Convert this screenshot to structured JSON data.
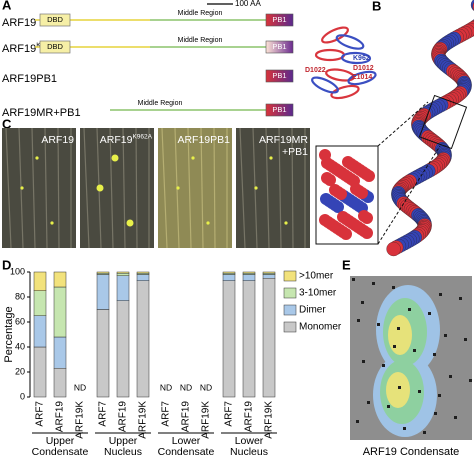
{
  "panel_labels": [
    "A",
    "B",
    "C",
    "D",
    "E"
  ],
  "panel_a": {
    "scale_bar": "100 AA",
    "rows": [
      {
        "name": "ARF19",
        "domains": [
          "DBD",
          "Middle Region",
          "PB1"
        ]
      },
      {
        "name": "ARF19",
        "superscript": "K962A",
        "domains": [
          "DBD",
          "Middle Region",
          "PB1"
        ]
      },
      {
        "name": "ARF19PB1",
        "domains": [
          "PB1"
        ]
      },
      {
        "name": "ARF19MR+PB1",
        "domains": [
          "Middle Region",
          "PB1"
        ]
      }
    ]
  },
  "panel_b": {
    "residues": [
      "K962",
      "D1012",
      "E1014",
      "D1022"
    ]
  },
  "panel_c": {
    "images": [
      {
        "name": "ARF19"
      },
      {
        "name": "ARF19",
        "superscript": "K962A"
      },
      {
        "name": "ARF19PB1"
      },
      {
        "name": "ARF19MR",
        "line2": "+PB1"
      }
    ]
  },
  "chart_data": {
    "type": "bar",
    "stacked": true,
    "ylabel": "Percentage",
    "categories": [
      "ARF7",
      "ARF19",
      "ARF19K",
      "ARF7",
      "ARF19",
      "ARF19K",
      "ARF7",
      "ARF19",
      "ARF19K",
      "ARF7",
      "ARF19",
      "ARF19K"
    ],
    "groups": [
      "Upper Condensate",
      "Upper Nucleus",
      "Lower Condensate",
      "Lower Nucleus"
    ],
    "category_notes": [
      null,
      null,
      "ND",
      null,
      null,
      null,
      "ND",
      "ND",
      "ND",
      null,
      null,
      null
    ],
    "series": [
      {
        "name": "Monomer",
        "color": "#c8c8c8",
        "values": [
          40,
          23,
          null,
          70,
          77,
          93,
          null,
          null,
          null,
          93,
          93,
          95
        ]
      },
      {
        "name": "Dimer",
        "color": "#a9c8e8",
        "values": [
          25,
          25,
          null,
          28,
          20,
          5,
          null,
          null,
          null,
          5,
          5,
          3
        ]
      },
      {
        "name": "3-10mer",
        "color": "#c6e6b0",
        "values": [
          20,
          40,
          null,
          1,
          2,
          1,
          null,
          null,
          null,
          1,
          1,
          1
        ]
      },
      {
        "name": ">10mer",
        "color": "#f2e27c",
        "values": [
          15,
          12,
          null,
          1,
          1,
          1,
          null,
          null,
          null,
          1,
          1,
          1
        ]
      }
    ],
    "ylim": [
      0,
      100
    ],
    "yticks": [
      0,
      20,
      40,
      60,
      80,
      100
    ]
  },
  "panel_e": {
    "caption": "ARF19 Condensate"
  }
}
